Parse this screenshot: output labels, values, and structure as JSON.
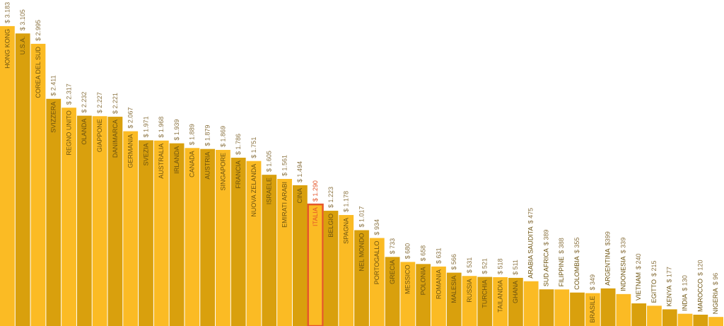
{
  "chart_data": {
    "type": "bar",
    "categories": [
      "HONG KONG",
      "U.S.A.",
      "COREA DEL SUD",
      "SVIZZERA",
      "REGNO UNITO",
      "OLANDA",
      "GIAPPONE",
      "DANIMARCA",
      "GERMANIA",
      "SVEZIA",
      "AUSTRALIA",
      "IRLANDA",
      "CANADA",
      "AUSTRIA",
      "SINGAPORE",
      "FRANCIA",
      "NUOVA ZELANDA",
      "ISRAELE",
      "EMIRATI ARABI",
      "CINA",
      "ITALIA",
      "BELGIO",
      "SPAGNA",
      "NEL MONDO",
      "PORTOGALLO",
      "GRECIA",
      "MESSICO",
      "POLONIA",
      "ROMANIA",
      "MALESIA",
      "RUSSIA",
      "TURCHIA",
      "TAILANDIA",
      "GHANA",
      "ARABIA SAUDITA",
      "SUD AFRICA",
      "FILIPPINE",
      "COLOMBIA",
      "BRASILE",
      "ARGENTINA",
      "INDONESIA",
      "VIETNAM",
      "EGITTO",
      "KENYA",
      "INDIA",
      "MAROCCO",
      "NIGERIA"
    ],
    "values": [
      3183,
      3105,
      2995,
      2411,
      2317,
      2232,
      2227,
      2221,
      2067,
      1971,
      1968,
      1939,
      1889,
      1879,
      1869,
      1786,
      1751,
      1605,
      1561,
      1494,
      1290,
      1223,
      1178,
      1017,
      934,
      733,
      680,
      658,
      631,
      566,
      531,
      521,
      518,
      511,
      475,
      389,
      388,
      355,
      349,
      399,
      339,
      240,
      215,
      177,
      130,
      120,
      96
    ],
    "value_labels": [
      "$ 3.183",
      "$ 3.105",
      "$ 2.995",
      "$ 2.411",
      "$ 2.317",
      "$ 2.232",
      "$ 2.227",
      "$ 2.221",
      "$ 2.067",
      "$ 1.971",
      "$ 1.968",
      "$ 1.939",
      "$ 1.889",
      "$ 1.879",
      "$ 1.869",
      "$ 1.786",
      "$ 1.751",
      "$ 1.605",
      "$ 1.561",
      "$ 1.494",
      "$ 1.290",
      "$ 1.223",
      "$ 1.178",
      "$ 1.017",
      "$ 934",
      "$ 733",
      "$ 680",
      "$ 658",
      "$ 631",
      "$ 566",
      "$ 531",
      "$ 521",
      "$ 518",
      "$ 511",
      "$ 475",
      "$ 389",
      "$ 388",
      "$ 355",
      "$ 349",
      "$399",
      "$ 339",
      "$ 240",
      "$ 215",
      "$ 177",
      "$ 130",
      "$ 120",
      "$ 96"
    ],
    "colors": [
      "#fbbb24",
      "#d9a00d"
    ],
    "highlight_category": "ITALIA",
    "highlight_color": "#e5572b",
    "ylim": [
      0,
      3460
    ]
  }
}
